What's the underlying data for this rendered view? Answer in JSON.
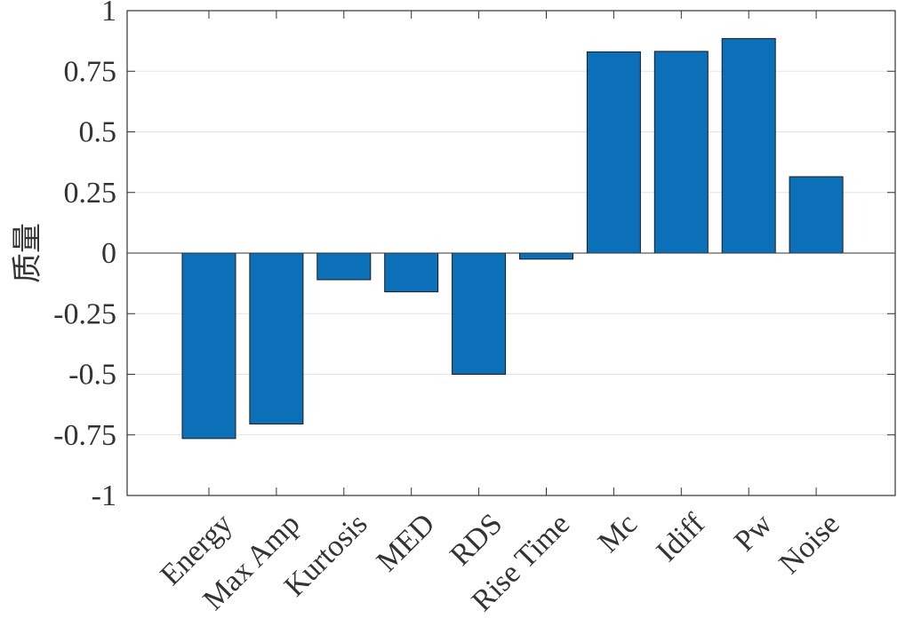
{
  "chart_data": {
    "type": "bar",
    "categories": [
      "Energy",
      "Max Amp",
      "Kurtosis",
      "MED",
      "RDS",
      "Rise Time",
      "Mc",
      "Idiff",
      "Pw",
      "Noise"
    ],
    "values": [
      -0.765,
      -0.705,
      -0.11,
      -0.16,
      -0.5,
      -0.025,
      0.83,
      0.832,
      0.885,
      0.315
    ],
    "ylabel": "质量",
    "xlabel": "",
    "ylim": [
      -1,
      1
    ],
    "yticks": [
      1,
      0.75,
      0.5,
      0.25,
      0,
      -0.25,
      -0.5,
      -0.75,
      -1
    ],
    "ytick_labels": [
      "1",
      "0.75",
      "0.5",
      "0.25",
      "0",
      "-0.25",
      "-0.5",
      "-0.75",
      "-1"
    ],
    "grid": "horizontal",
    "bar_color": "#0b70b8",
    "bar_edge_color": "#1a1a1a"
  }
}
